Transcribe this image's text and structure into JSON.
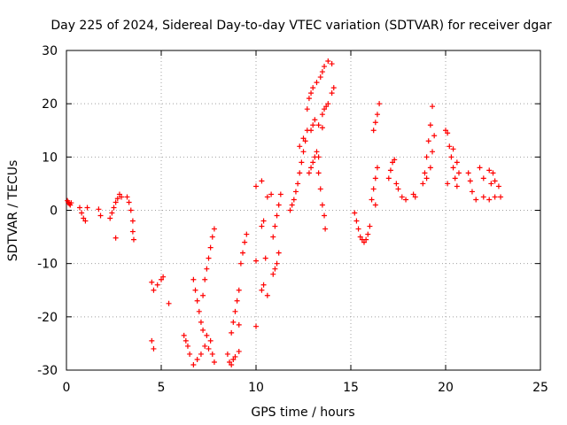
{
  "chart_data": {
    "type": "scatter",
    "title": "Day 225 of 2024, Sidereal Day-to-day VTEC variation (SDTVAR) for receiver dgar",
    "xlabel": "GPS time / hours",
    "ylabel": "SDTVAR / TECUs",
    "xlim": [
      0,
      25
    ],
    "ylim": [
      -30,
      30
    ],
    "xticks": [
      0,
      5,
      10,
      15,
      20,
      25
    ],
    "yticks": [
      -30,
      -20,
      -10,
      0,
      10,
      20,
      30
    ],
    "grid": true,
    "marker": "plus",
    "series": [
      {
        "name": "SDTVAR",
        "color": "#ff0000",
        "points": [
          [
            0.05,
            1.8
          ],
          [
            0.1,
            1.5
          ],
          [
            0.15,
            1.2
          ],
          [
            0.2,
            1.0
          ],
          [
            0.25,
            1.4
          ],
          [
            0.7,
            0.5
          ],
          [
            0.8,
            -0.5
          ],
          [
            0.9,
            -1.5
          ],
          [
            1.0,
            -2.0
          ],
          [
            1.1,
            0.5
          ],
          [
            1.7,
            0.2
          ],
          [
            1.8,
            -1.0
          ],
          [
            2.3,
            -1.5
          ],
          [
            2.4,
            -0.5
          ],
          [
            2.5,
            0.5
          ],
          [
            2.6,
            1.5
          ],
          [
            2.7,
            2.2
          ],
          [
            2.8,
            3.0
          ],
          [
            2.9,
            2.5
          ],
          [
            2.6,
            -5.2
          ],
          [
            3.2,
            2.5
          ],
          [
            3.3,
            1.5
          ],
          [
            3.4,
            0.0
          ],
          [
            3.5,
            -2.0
          ],
          [
            3.5,
            -4.0
          ],
          [
            3.55,
            -5.5
          ],
          [
            4.5,
            -13.5
          ],
          [
            4.6,
            -15.0
          ],
          [
            4.8,
            -14.0
          ],
          [
            5.0,
            -13.0
          ],
          [
            5.1,
            -12.5
          ],
          [
            5.4,
            -17.5
          ],
          [
            4.5,
            -24.5
          ],
          [
            4.6,
            -26.0
          ],
          [
            6.2,
            -23.5
          ],
          [
            6.3,
            -24.5
          ],
          [
            6.4,
            -25.5
          ],
          [
            6.5,
            -27.0
          ],
          [
            6.7,
            -29.0
          ],
          [
            6.9,
            -28.0
          ],
          [
            7.1,
            -27.0
          ],
          [
            7.3,
            -25.5
          ],
          [
            7.5,
            -26.0
          ],
          [
            7.7,
            -27.0
          ],
          [
            7.8,
            -28.5
          ],
          [
            6.7,
            -13.0
          ],
          [
            6.8,
            -15.0
          ],
          [
            6.9,
            -17.0
          ],
          [
            7.0,
            -19.0
          ],
          [
            7.1,
            -21.0
          ],
          [
            7.2,
            -22.5
          ],
          [
            7.4,
            -23.5
          ],
          [
            7.6,
            -24.5
          ],
          [
            7.2,
            -16.0
          ],
          [
            7.3,
            -13.0
          ],
          [
            7.4,
            -11.0
          ],
          [
            7.5,
            -9.0
          ],
          [
            7.6,
            -7.0
          ],
          [
            7.7,
            -5.0
          ],
          [
            7.8,
            -3.5
          ],
          [
            8.5,
            -27.0
          ],
          [
            8.6,
            -28.5
          ],
          [
            8.7,
            -29.0
          ],
          [
            8.8,
            -28.0
          ],
          [
            8.9,
            -27.5
          ],
          [
            9.1,
            -26.5
          ],
          [
            8.7,
            -23.0
          ],
          [
            8.8,
            -21.0
          ],
          [
            8.9,
            -19.0
          ],
          [
            9.0,
            -17.0
          ],
          [
            9.1,
            -15.0
          ],
          [
            9.2,
            -10.0
          ],
          [
            9.3,
            -8.0
          ],
          [
            9.4,
            -6.0
          ],
          [
            9.5,
            -4.5
          ],
          [
            9.1,
            -21.5
          ],
          [
            10.0,
            -21.8
          ],
          [
            10.0,
            -9.5
          ],
          [
            10.0,
            4.5
          ],
          [
            10.3,
            5.5
          ],
          [
            10.3,
            -15.0
          ],
          [
            10.4,
            -14.0
          ],
          [
            10.6,
            -16.0
          ],
          [
            10.5,
            -9.0
          ],
          [
            10.3,
            -3.0
          ],
          [
            10.4,
            -2.0
          ],
          [
            10.6,
            2.5
          ],
          [
            10.8,
            3.0
          ],
          [
            10.9,
            -12.0
          ],
          [
            11.0,
            -11.0
          ],
          [
            11.1,
            -10.0
          ],
          [
            11.2,
            -8.0
          ],
          [
            10.9,
            -5.0
          ],
          [
            11.0,
            -3.0
          ],
          [
            11.1,
            -1.0
          ],
          [
            11.2,
            1.0
          ],
          [
            11.3,
            3.0
          ],
          [
            11.8,
            0.0
          ],
          [
            11.9,
            1.0
          ],
          [
            12.0,
            2.0
          ],
          [
            12.1,
            3.5
          ],
          [
            12.2,
            5.0
          ],
          [
            12.3,
            7.0
          ],
          [
            12.4,
            9.0
          ],
          [
            12.5,
            11.0
          ],
          [
            12.6,
            13.0
          ],
          [
            12.7,
            15.0
          ],
          [
            12.3,
            12.0
          ],
          [
            12.5,
            13.5
          ],
          [
            12.8,
            7.0
          ],
          [
            12.9,
            8.0
          ],
          [
            13.0,
            9.0
          ],
          [
            13.1,
            10.0
          ],
          [
            13.2,
            11.0
          ],
          [
            13.3,
            10.0
          ],
          [
            13.3,
            7.0
          ],
          [
            13.4,
            4.0
          ],
          [
            13.5,
            1.0
          ],
          [
            13.6,
            -1.0
          ],
          [
            13.65,
            -3.5
          ],
          [
            12.9,
            15.0
          ],
          [
            13.0,
            16.0
          ],
          [
            13.1,
            17.0
          ],
          [
            13.3,
            16.0
          ],
          [
            13.5,
            15.5
          ],
          [
            12.7,
            19.0
          ],
          [
            12.8,
            21.0
          ],
          [
            12.9,
            22.0
          ],
          [
            13.0,
            23.0
          ],
          [
            13.2,
            24.0
          ],
          [
            13.4,
            25.0
          ],
          [
            13.5,
            26.0
          ],
          [
            13.6,
            27.0
          ],
          [
            13.8,
            28.0
          ],
          [
            14.0,
            27.5
          ],
          [
            13.5,
            18.0
          ],
          [
            13.6,
            19.0
          ],
          [
            13.7,
            19.5
          ],
          [
            13.8,
            20.0
          ],
          [
            14.0,
            22.0
          ],
          [
            14.1,
            23.0
          ],
          [
            15.2,
            -0.5
          ],
          [
            15.3,
            -2.0
          ],
          [
            15.4,
            -3.5
          ],
          [
            15.5,
            -5.0
          ],
          [
            15.6,
            -5.5
          ],
          [
            15.7,
            -6.0
          ],
          [
            15.8,
            -5.5
          ],
          [
            15.9,
            -4.5
          ],
          [
            16.0,
            -3.0
          ],
          [
            16.1,
            2.0
          ],
          [
            16.2,
            4.0
          ],
          [
            16.3,
            6.0
          ],
          [
            16.4,
            8.0
          ],
          [
            16.3,
            1.0
          ],
          [
            16.2,
            15.0
          ],
          [
            16.3,
            16.5
          ],
          [
            16.4,
            18.0
          ],
          [
            16.5,
            20.0
          ],
          [
            17.0,
            6.0
          ],
          [
            17.1,
            7.5
          ],
          [
            17.3,
            9.5
          ],
          [
            17.2,
            9.0
          ],
          [
            17.4,
            5.0
          ],
          [
            17.5,
            4.0
          ],
          [
            17.7,
            2.5
          ],
          [
            17.9,
            2.0
          ],
          [
            18.3,
            3.0
          ],
          [
            18.4,
            2.5
          ],
          [
            18.8,
            5.0
          ],
          [
            18.9,
            7.0
          ],
          [
            19.0,
            10.0
          ],
          [
            19.1,
            13.0
          ],
          [
            19.2,
            16.0
          ],
          [
            19.3,
            19.5
          ],
          [
            19.0,
            6.0
          ],
          [
            19.2,
            8.0
          ],
          [
            19.3,
            11.0
          ],
          [
            19.4,
            14.0
          ],
          [
            20.0,
            15.0
          ],
          [
            20.1,
            14.5
          ],
          [
            20.2,
            12.0
          ],
          [
            20.3,
            10.0
          ],
          [
            20.4,
            8.0
          ],
          [
            20.5,
            6.0
          ],
          [
            20.6,
            4.5
          ],
          [
            20.1,
            5.0
          ],
          [
            20.4,
            11.5
          ],
          [
            20.6,
            9.0
          ],
          [
            20.7,
            7.0
          ],
          [
            21.2,
            7.0
          ],
          [
            21.3,
            5.5
          ],
          [
            21.4,
            3.5
          ],
          [
            21.6,
            2.0
          ],
          [
            21.8,
            8.0
          ],
          [
            22.0,
            6.0
          ],
          [
            22.0,
            2.5
          ],
          [
            22.3,
            7.5
          ],
          [
            22.5,
            7.0
          ],
          [
            22.4,
            5.0
          ],
          [
            22.6,
            5.5
          ],
          [
            22.3,
            2.0
          ],
          [
            22.6,
            2.5
          ],
          [
            22.8,
            4.5
          ],
          [
            22.9,
            2.5
          ]
        ]
      }
    ]
  }
}
